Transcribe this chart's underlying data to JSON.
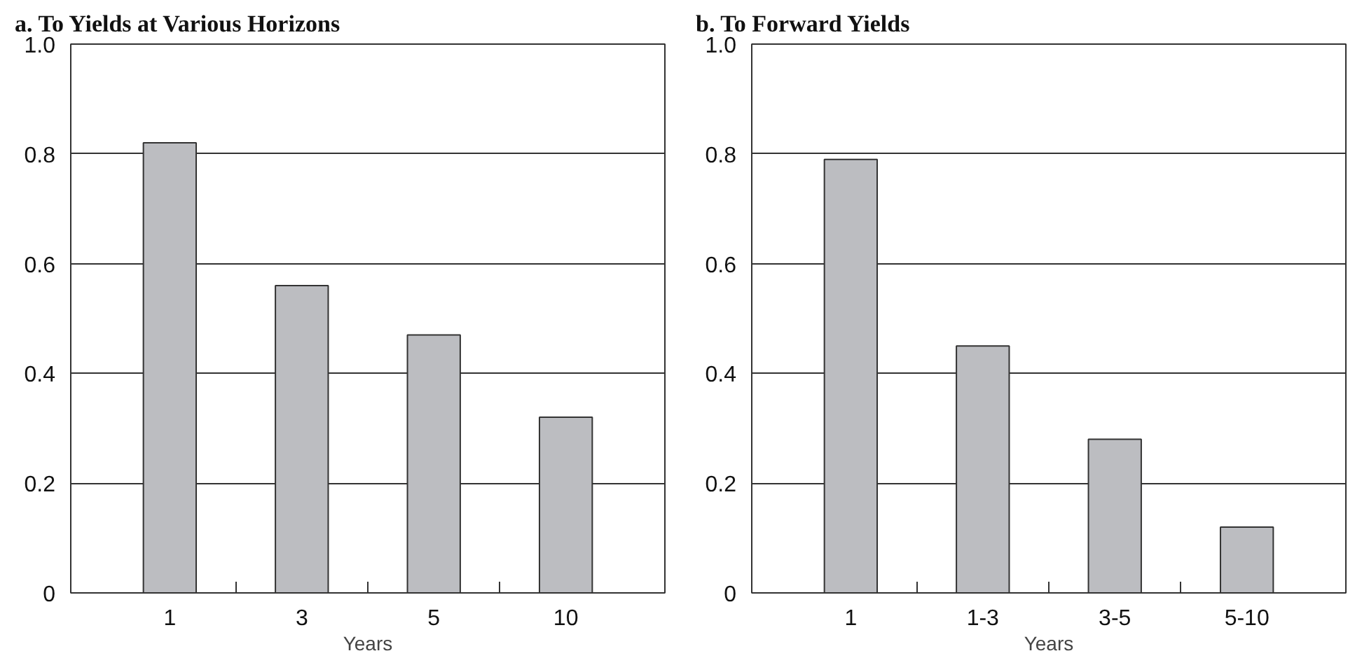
{
  "chart_data": [
    {
      "type": "bar",
      "title": "a. To Yields at Various Horizons",
      "xlabel": "Years",
      "categories": [
        "1",
        "3",
        "5",
        "10"
      ],
      "values": [
        0.82,
        0.56,
        0.47,
        0.32
      ],
      "color": "#bcbdc1",
      "ylim": [
        0,
        1.0
      ],
      "yticks": [
        0,
        0.2,
        0.4,
        0.6,
        0.8,
        {
          "value": 1,
          "label": "1.0"
        }
      ],
      "grid": "y"
    },
    {
      "type": "bar",
      "title": "b. To Forward Yields",
      "xlabel": "Years",
      "categories": [
        "1",
        "1-3",
        "3-5",
        "5-10"
      ],
      "values": [
        0.79,
        0.45,
        0.28,
        0.12
      ],
      "color": "#bcbdc1",
      "ylim": [
        0,
        1.0
      ],
      "yticks": [
        0,
        0.2,
        0.4,
        0.6,
        0.8,
        {
          "value": 1,
          "label": "1.0"
        }
      ],
      "grid": "y"
    }
  ]
}
